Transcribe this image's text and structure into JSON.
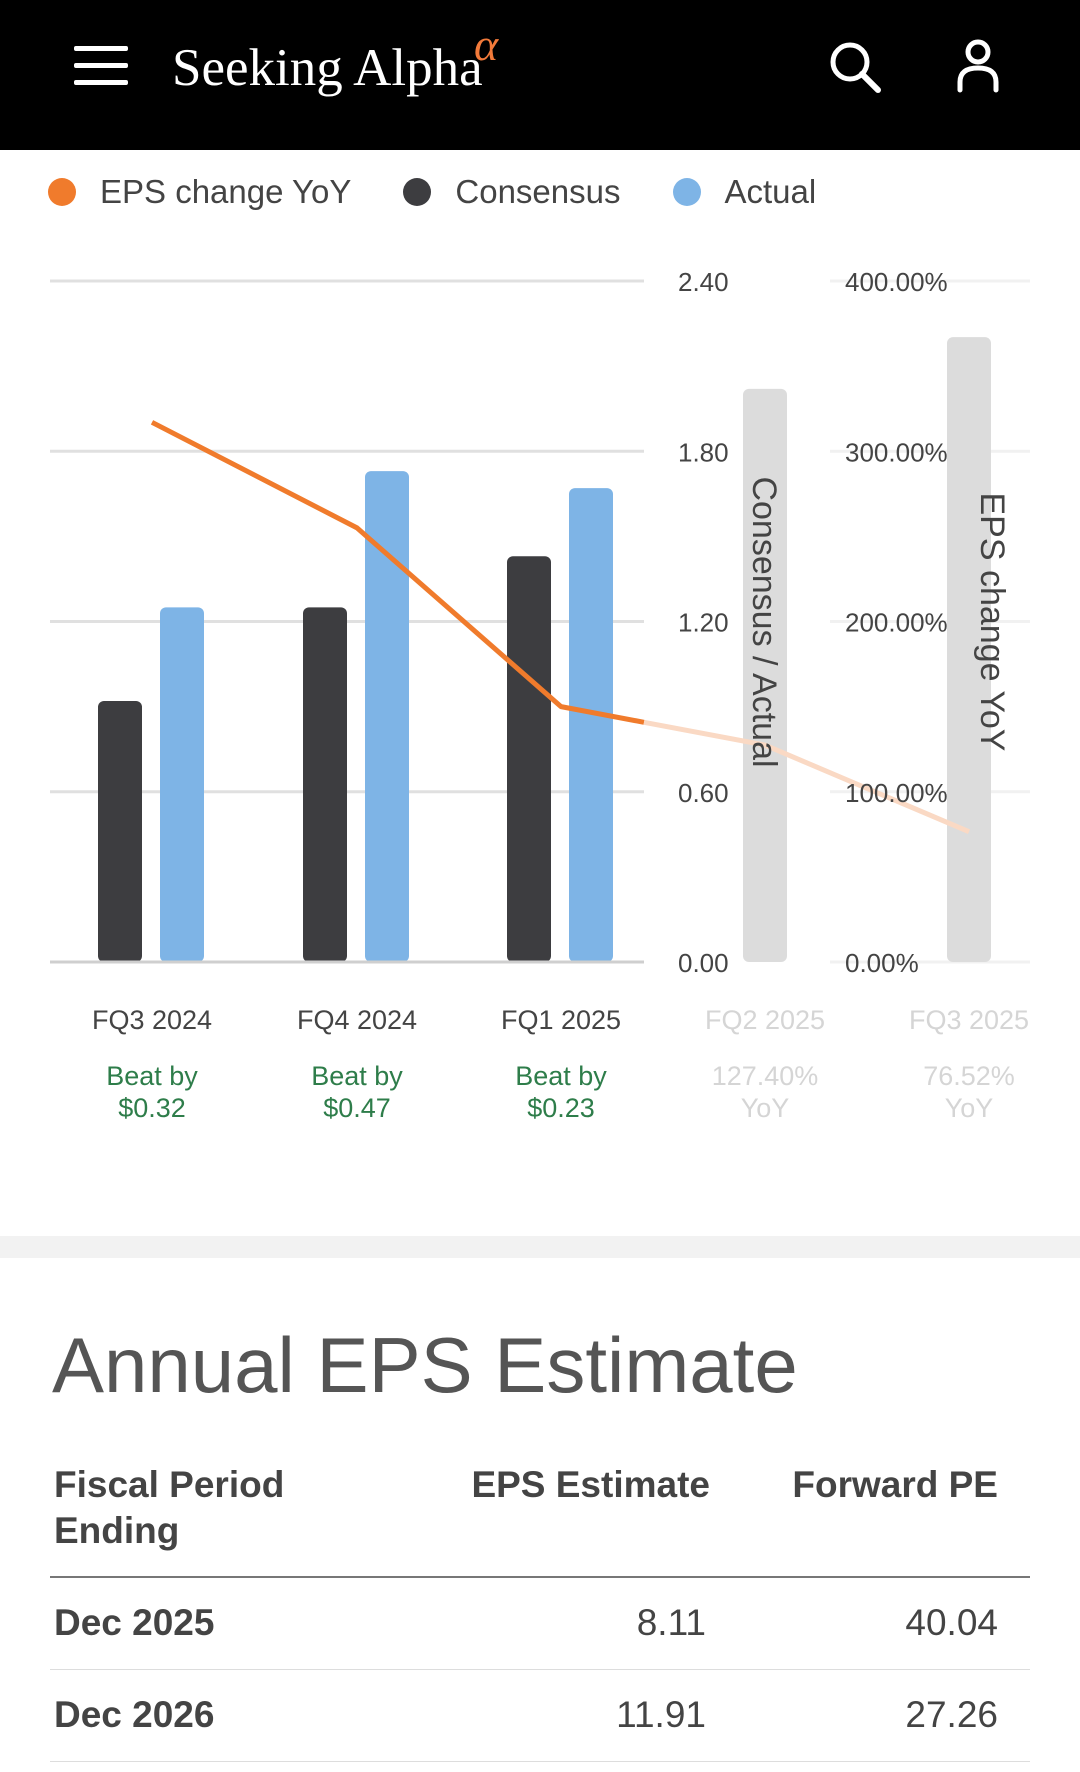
{
  "header": {
    "logo_text": "Seeking Alpha",
    "logo_symbol": "α",
    "menu_icon": "menu-icon",
    "search_icon": "search-icon",
    "user_icon": "user-icon"
  },
  "colors": {
    "header_bg": "#000000",
    "eps_change": "#f07b2c",
    "consensus": "#3d3d40",
    "actual": "#7eb4e6",
    "estimate_bar": "#dcdcdc",
    "beat_text": "#2e7d4a",
    "future_text": "#d5d5d5",
    "grid": "#e0e0e0"
  },
  "chart_data": {
    "type": "bar",
    "legend": [
      "EPS change YoY",
      "Consensus",
      "Actual"
    ],
    "categories": [
      "FQ3 2024",
      "FQ4 2024",
      "FQ1 2025",
      "FQ2 2025",
      "FQ3 2025"
    ],
    "series": [
      {
        "name": "Consensus",
        "values": [
          0.92,
          1.25,
          1.43,
          2.02,
          null
        ]
      },
      {
        "name": "Actual",
        "values": [
          1.25,
          1.73,
          1.67,
          null,
          null
        ]
      },
      {
        "name": "EPS change YoY",
        "values": [
          317,
          255,
          150,
          127.4,
          76.52
        ]
      }
    ],
    "left_axis": {
      "label": "Consensus / Actual",
      "ticks": [
        "0.00",
        "0.60",
        "1.20",
        "1.80",
        "2.40"
      ],
      "range": [
        0,
        2.4
      ]
    },
    "right_axis": {
      "label": "EPS change YoY",
      "ticks": [
        "0.00%",
        "100.00%",
        "200.00%",
        "300.00%",
        "400.00%"
      ],
      "range": [
        0,
        400
      ]
    },
    "future_estimate_bars": [
      {
        "category": "FQ2 2025",
        "axis": "left",
        "value": 2.02
      },
      {
        "category": "FQ3 2025",
        "axis": "right",
        "value": 367
      }
    ],
    "annotations": [
      {
        "line1": "Beat by",
        "line2": "$0.32"
      },
      {
        "line1": "Beat by",
        "line2": "$0.47"
      },
      {
        "line1": "Beat by",
        "line2": "$0.23"
      },
      {
        "line1": "127.40%",
        "line2": "YoY"
      },
      {
        "line1": "76.52%",
        "line2": "YoY"
      }
    ]
  },
  "annual": {
    "title": "Annual EPS Estimate",
    "headers": {
      "period_line1": "Fiscal Period",
      "period_line2": "Ending",
      "eps": "EPS Estimate",
      "pe": "Forward PE"
    },
    "rows": [
      {
        "period": "Dec 2025",
        "eps": "8.11",
        "pe": "40.04"
      },
      {
        "period": "Dec 2026",
        "eps": "11.91",
        "pe": "27.26"
      }
    ]
  }
}
